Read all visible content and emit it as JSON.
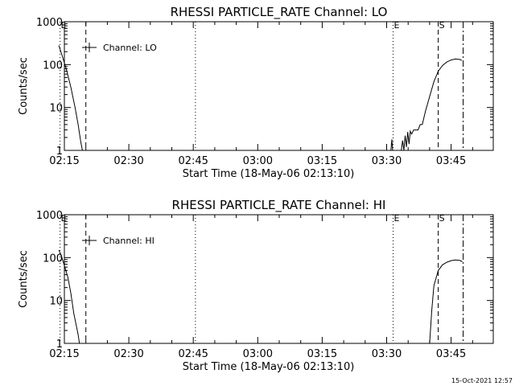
{
  "footer": {
    "timestamp": "15-Oct-2021 12:57"
  },
  "chart_data": [
    {
      "type": "line",
      "title": "RHESSI PARTICLE_RATE Channel: LO",
      "xlabel": "Start Time (18-May-06 02:13:10)",
      "ylabel": "Counts/sec",
      "xlim_minutes": [
        -1.5,
        37.5
      ],
      "x_tick_minutes": [
        0,
        15,
        30,
        45,
        60,
        75,
        90
      ],
      "x_tick_labels": [
        "02:15",
        "02:30",
        "02:45",
        "03:00",
        "03:15",
        "03:30",
        "03:45"
      ],
      "y_scale": "log",
      "ylim": [
        1,
        1000
      ],
      "y_ticks": [
        1,
        10,
        100,
        1000
      ],
      "y_tick_labels": [
        "1",
        "10",
        "100",
        "1000"
      ],
      "legend": {
        "label": "Channel: LO",
        "placement": "top-left"
      },
      "markers": [
        {
          "label": "E",
          "minute": -1.0,
          "style": "dotted"
        },
        {
          "label": "",
          "minute": 5.0,
          "style": "dashed"
        },
        {
          "label": "",
          "minute": 30.5,
          "style": "dotted"
        },
        {
          "label": "E",
          "minute": 76.5,
          "style": "dotted"
        },
        {
          "label": "S",
          "minute": 87.0,
          "style": "dashed"
        },
        {
          "label": "",
          "minute": 92.8,
          "style": "dashdot"
        }
      ],
      "series": [
        {
          "name": "",
          "segments": [
            {
              "x": [
                -1.3,
                -0.5,
                0.5,
                1.5,
                2.5,
                3.2,
                3.8,
                4.2
              ],
              "y": [
                280,
                160,
                75,
                30,
                10,
                4,
                1.6,
                1.0
              ]
            },
            {
              "x": [
                76.0,
                76.2,
                76.4
              ],
              "y": [
                1,
                1.8,
                1
              ]
            },
            {
              "x": [
                78.4,
                78.7,
                79.0,
                79.3,
                79.6,
                79.9,
                80.2,
                80.5,
                80.8,
                81.3,
                81.8,
                82.3,
                82.8,
                83.3,
                84.0,
                85.0,
                86.0,
                87.0,
                88.0,
                89.0,
                90.0,
                91.0,
                92.0,
                92.5
              ],
              "y": [
                1,
                1.7,
                1,
                2.2,
                1.2,
                2.7,
                1.4,
                2.8,
                2.4,
                3.0,
                3.0,
                3.0,
                4.0,
                4.0,
                8,
                18,
                40,
                70,
                95,
                115,
                128,
                135,
                132,
                125
              ]
            }
          ]
        }
      ]
    },
    {
      "type": "line",
      "title": "RHESSI PARTICLE_RATE Channel: HI",
      "xlabel": "Start Time (18-May-06 02:13:10)",
      "ylabel": "Counts/sec",
      "xlim_minutes": [
        -1.5,
        37.5
      ],
      "x_tick_minutes": [
        0,
        15,
        30,
        45,
        60,
        75,
        90
      ],
      "x_tick_labels": [
        "02:15",
        "02:30",
        "02:45",
        "03:00",
        "03:15",
        "03:30",
        "03:45"
      ],
      "y_scale": "log",
      "ylim": [
        1,
        1000
      ],
      "y_ticks": [
        1,
        10,
        100,
        1000
      ],
      "y_tick_labels": [
        "1",
        "10",
        "100",
        "1000"
      ],
      "legend": {
        "label": "Channel: HI",
        "placement": "top-left"
      },
      "markers": [
        {
          "label": "E",
          "minute": -1.0,
          "style": "dotted"
        },
        {
          "label": "",
          "minute": 5.0,
          "style": "dashed"
        },
        {
          "label": "",
          "minute": 30.5,
          "style": "dotted"
        },
        {
          "label": "E",
          "minute": 76.5,
          "style": "dotted"
        },
        {
          "label": "S",
          "minute": 87.0,
          "style": "dashed"
        },
        {
          "label": "",
          "minute": 92.8,
          "style": "dashdot"
        }
      ],
      "series": [
        {
          "name": "",
          "segments": [
            {
              "x": [
                -1.3,
                -0.7,
                0.0,
                0.8,
                1.5,
                2.2,
                2.8,
                3.2,
                3.5
              ],
              "y": [
                150,
                110,
                65,
                35,
                15,
                5,
                2.5,
                1.6,
                1.0
              ]
            },
            {
              "x": [
                85.0,
                85.5,
                86.0,
                87.0,
                88.0,
                89.0,
                90.0,
                91.0,
                92.0,
                92.6
              ],
              "y": [
                1,
                6,
                22,
                50,
                68,
                78,
                85,
                88,
                86,
                80
              ]
            }
          ]
        }
      ]
    }
  ]
}
